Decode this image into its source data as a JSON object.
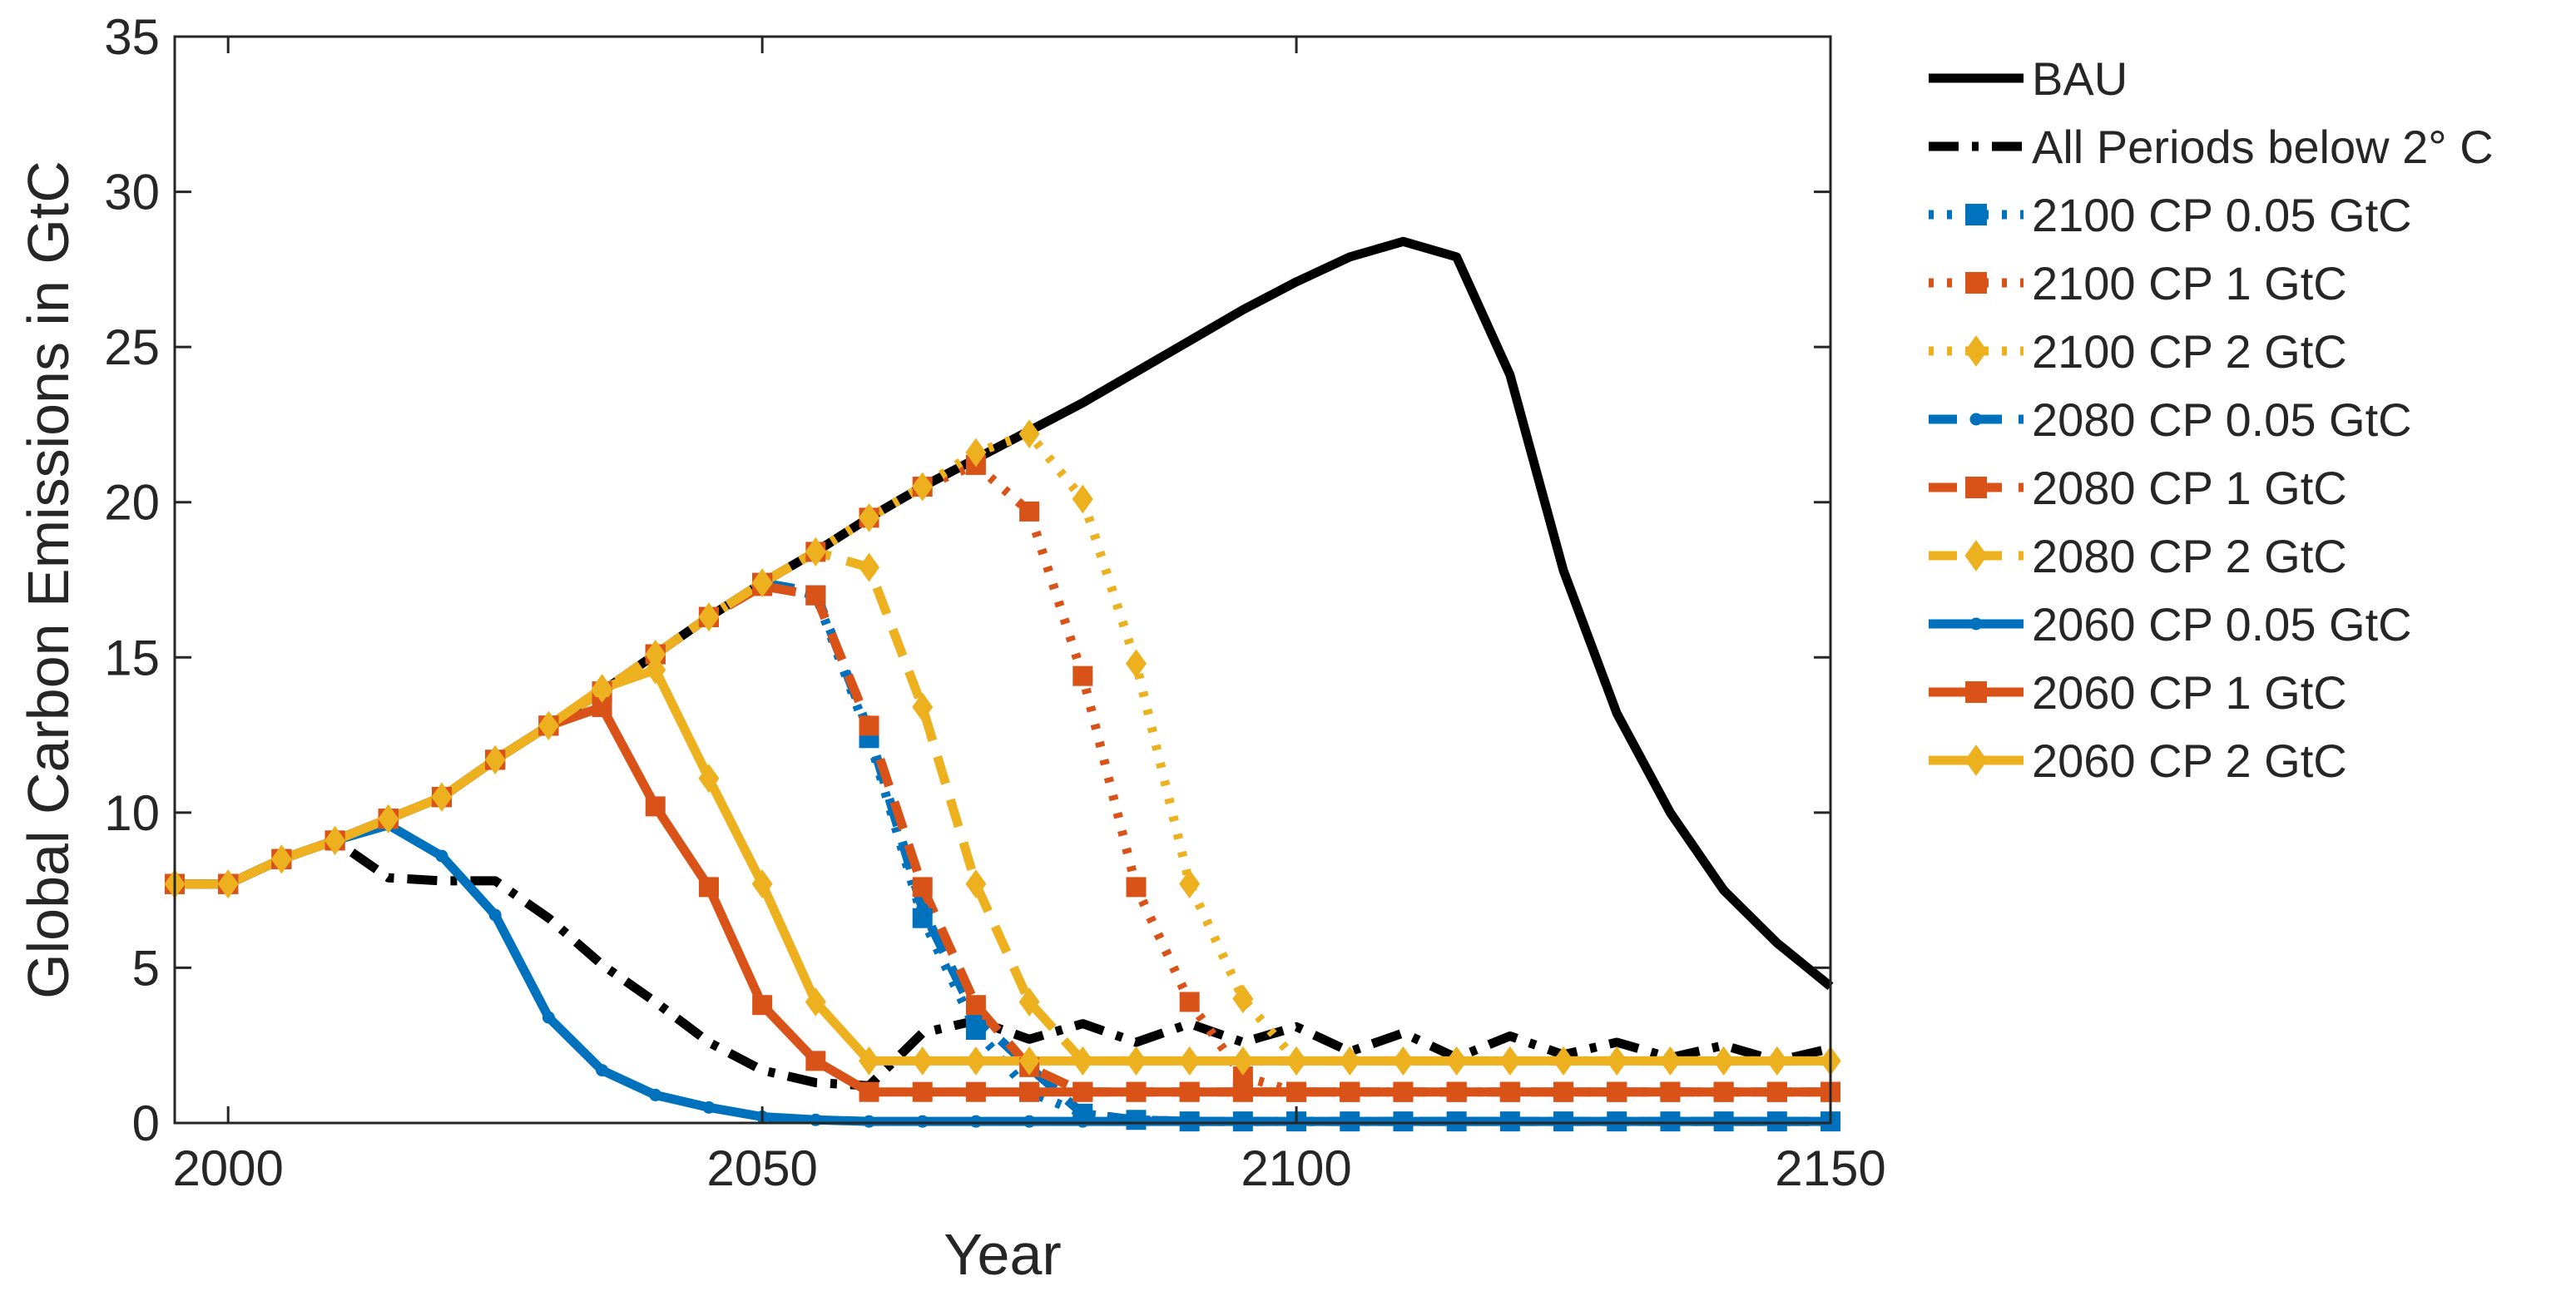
{
  "chart_data": {
    "type": "line",
    "title": "",
    "xlabel": "Year",
    "ylabel": "Global Carbon Emissions in GtC",
    "xlim": [
      1995,
      2150
    ],
    "ylim": [
      0,
      35
    ],
    "xticks": [
      2000,
      2050,
      2100,
      2150
    ],
    "yticks": [
      0,
      5,
      10,
      15,
      20,
      25,
      30,
      35
    ],
    "grid": false,
    "legend_position": "outside-right",
    "x": [
      1995,
      2000,
      2005,
      2010,
      2015,
      2020,
      2025,
      2030,
      2035,
      2040,
      2045,
      2050,
      2055,
      2060,
      2065,
      2070,
      2075,
      2080,
      2085,
      2090,
      2095,
      2100,
      2105,
      2110,
      2115,
      2120,
      2125,
      2130,
      2135,
      2140,
      2145,
      2150
    ],
    "series": [
      {
        "name": "BAU",
        "color": "#000000",
        "dash": "solid",
        "marker": "none",
        "values": [
          7.7,
          7.7,
          8.5,
          9.1,
          9.8,
          10.5,
          11.7,
          12.8,
          13.9,
          15.1,
          16.3,
          17.4,
          18.4,
          19.5,
          20.5,
          21.4,
          22.3,
          23.2,
          24.2,
          25.2,
          26.2,
          27.1,
          27.9,
          28.4,
          27.9,
          24.1,
          17.8,
          13.2,
          10.0,
          7.5,
          5.8,
          4.4
        ]
      },
      {
        "name": "All Periods below 2° C",
        "color": "#000000",
        "dash": "dashdot",
        "marker": "none",
        "values": [
          7.7,
          7.7,
          8.5,
          9.1,
          7.9,
          7.8,
          7.8,
          6.6,
          5.1,
          3.9,
          2.6,
          1.7,
          1.3,
          1.2,
          2.9,
          3.3,
          2.7,
          3.2,
          2.6,
          3.2,
          2.6,
          3.1,
          2.3,
          2.9,
          2.1,
          2.8,
          2.2,
          2.6,
          2.1,
          2.5,
          2.0,
          2.4
        ]
      },
      {
        "name": "2100 CP 0.05 GtC",
        "color": "#0072BD",
        "dash": "dotted",
        "marker": "square",
        "values": [
          7.7,
          7.7,
          8.5,
          9.1,
          9.8,
          10.5,
          11.7,
          12.8,
          13.9,
          15.1,
          16.3,
          17.4,
          17.0,
          12.4,
          6.6,
          3.0,
          1.0,
          0.3,
          0.1,
          0.05,
          0.05,
          0.05,
          0.05,
          0.05,
          0.05,
          0.05,
          0.05,
          0.05,
          0.05,
          0.05,
          0.05,
          0.05
        ]
      },
      {
        "name": "2100 CP 1 GtC",
        "color": "#D95319",
        "dash": "dotted",
        "marker": "square",
        "values": [
          7.7,
          7.7,
          8.5,
          9.1,
          9.8,
          10.5,
          11.7,
          12.8,
          13.9,
          15.1,
          16.3,
          17.4,
          18.4,
          19.5,
          20.5,
          21.2,
          19.7,
          14.4,
          7.6,
          3.9,
          1.5,
          1.0,
          1.0,
          1.0,
          1.0,
          1.0,
          1.0,
          1.0,
          1.0,
          1.0,
          1.0,
          1.0
        ]
      },
      {
        "name": "2100 CP 2 GtC",
        "color": "#EDB120",
        "dash": "dotted",
        "marker": "diamond",
        "values": [
          7.7,
          7.7,
          8.5,
          9.1,
          9.8,
          10.5,
          11.7,
          12.8,
          13.9,
          15.1,
          16.3,
          17.4,
          18.4,
          19.5,
          20.5,
          21.6,
          22.2,
          20.1,
          14.8,
          7.7,
          4.0,
          2.0,
          2.0,
          2.0,
          2.0,
          2.0,
          2.0,
          2.0,
          2.0,
          2.0,
          2.0,
          2.0
        ]
      },
      {
        "name": "2080 CP 0.05 GtC",
        "color": "#0072BD",
        "dash": "dashed",
        "marker": "point",
        "values": [
          7.7,
          7.7,
          8.5,
          9.1,
          9.8,
          10.5,
          11.7,
          12.8,
          13.9,
          15.1,
          16.3,
          17.4,
          17.1,
          12.6,
          6.9,
          3.4,
          1.8,
          0.3,
          0.1,
          0.05,
          0.05,
          0.05,
          0.05,
          0.05,
          0.05,
          0.05,
          0.05,
          0.05,
          0.05,
          0.05,
          0.05,
          0.05
        ]
      },
      {
        "name": "2080 CP 1 GtC",
        "color": "#D95319",
        "dash": "dashed",
        "marker": "square",
        "values": [
          7.7,
          7.7,
          8.5,
          9.1,
          9.8,
          10.5,
          11.7,
          12.8,
          13.9,
          15.1,
          16.3,
          17.3,
          17.0,
          12.8,
          7.6,
          3.8,
          1.8,
          1.0,
          1.0,
          1.0,
          1.0,
          1.0,
          1.0,
          1.0,
          1.0,
          1.0,
          1.0,
          1.0,
          1.0,
          1.0,
          1.0,
          1.0
        ]
      },
      {
        "name": "2080 CP 2 GtC",
        "color": "#EDB120",
        "dash": "dashed",
        "marker": "diamond",
        "values": [
          7.7,
          7.7,
          8.5,
          9.1,
          9.8,
          10.5,
          11.7,
          12.8,
          13.9,
          15.1,
          16.3,
          17.4,
          18.4,
          17.9,
          13.4,
          7.7,
          3.9,
          2.0,
          2.0,
          2.0,
          2.0,
          2.0,
          2.0,
          2.0,
          2.0,
          2.0,
          2.0,
          2.0,
          2.0,
          2.0,
          2.0,
          2.0
        ]
      },
      {
        "name": "2060 CP 0.05 GtC",
        "color": "#0072BD",
        "dash": "solid",
        "marker": "point",
        "values": [
          7.7,
          7.7,
          8.5,
          9.1,
          9.6,
          8.6,
          6.7,
          3.4,
          1.7,
          0.9,
          0.5,
          0.2,
          0.1,
          0.05,
          0.05,
          0.05,
          0.05,
          0.05,
          0.05,
          0.05,
          0.05,
          0.05,
          0.05,
          0.05,
          0.05,
          0.05,
          0.05,
          0.05,
          0.05,
          0.05,
          0.05,
          0.05
        ]
      },
      {
        "name": "2060 CP 1 GtC",
        "color": "#D95319",
        "dash": "solid",
        "marker": "square",
        "values": [
          7.7,
          7.7,
          8.5,
          9.1,
          9.8,
          10.5,
          11.7,
          12.8,
          13.4,
          10.2,
          7.6,
          3.8,
          2.0,
          1.0,
          1.0,
          1.0,
          1.0,
          1.0,
          1.0,
          1.0,
          1.0,
          1.0,
          1.0,
          1.0,
          1.0,
          1.0,
          1.0,
          1.0,
          1.0,
          1.0,
          1.0,
          1.0
        ]
      },
      {
        "name": "2060 CP 2 GtC",
        "color": "#EDB120",
        "dash": "solid",
        "marker": "diamond",
        "values": [
          7.7,
          7.7,
          8.5,
          9.1,
          9.8,
          10.5,
          11.7,
          12.8,
          14.0,
          14.6,
          11.1,
          7.7,
          3.9,
          2.0,
          2.0,
          2.0,
          2.0,
          2.0,
          2.0,
          2.0,
          2.0,
          2.0,
          2.0,
          2.0,
          2.0,
          2.0,
          2.0,
          2.0,
          2.0,
          2.0,
          2.0,
          2.0
        ]
      }
    ]
  }
}
